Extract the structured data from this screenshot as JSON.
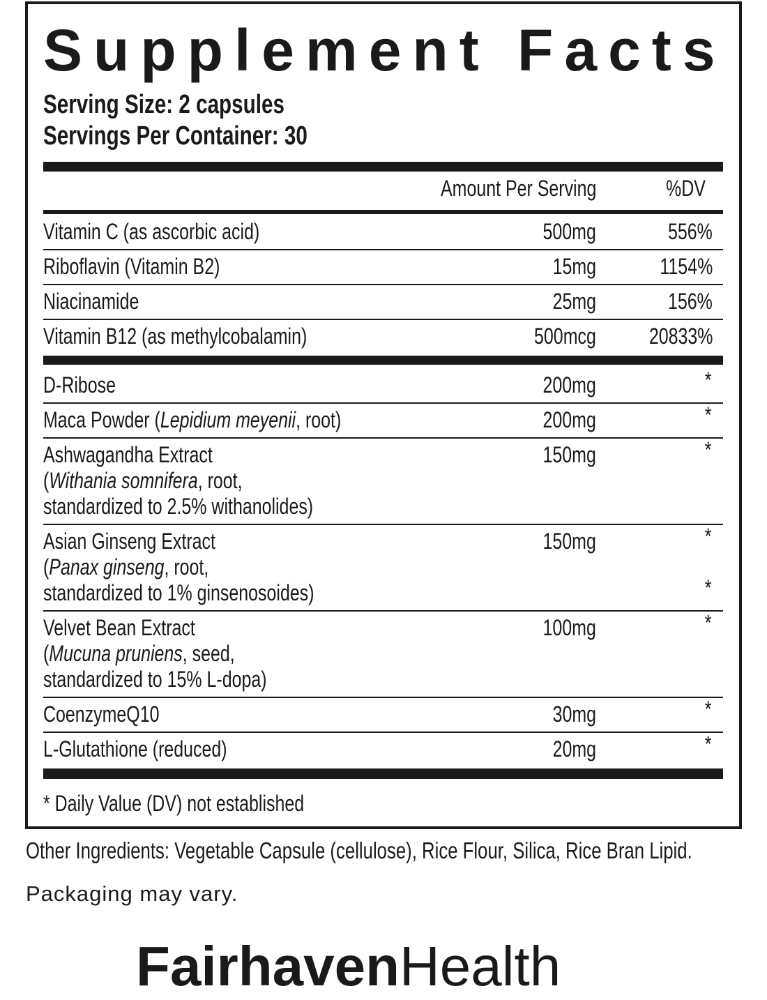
{
  "header": {
    "title": "Supplement Facts",
    "serving_size": "Serving Size: 2 capsules",
    "servings_per_container": "Servings Per Container: 30"
  },
  "table": {
    "columns": {
      "amount": "Amount Per Serving",
      "dv": "%DV"
    },
    "sections": [
      {
        "rows": [
          {
            "name": [
              [
                {
                  "text": "Vitamin C (as ascorbic acid)"
                }
              ]
            ],
            "amount": "500mg",
            "dv": "556%"
          },
          {
            "name": [
              [
                {
                  "text": "Riboflavin (Vitamin B2)"
                }
              ]
            ],
            "amount": "15mg",
            "dv": "1154%"
          },
          {
            "name": [
              [
                {
                  "text": "Niacinamide"
                }
              ]
            ],
            "amount": "25mg",
            "dv": "156%"
          },
          {
            "name": [
              [
                {
                  "text": "Vitamin B12 (as methylcobalamin)"
                }
              ]
            ],
            "amount": "500mcg",
            "dv": "20833%"
          }
        ]
      },
      {
        "rows": [
          {
            "name": [
              [
                {
                  "text": "D-Ribose"
                }
              ]
            ],
            "amount": "200mg",
            "dv": "*"
          },
          {
            "name": [
              [
                {
                  "text": "Maca Powder ("
                },
                {
                  "text": "Lepidium meyenii",
                  "italic": true
                },
                {
                  "text": ", root)"
                }
              ]
            ],
            "amount": "200mg",
            "dv": "*"
          },
          {
            "name": [
              [
                {
                  "text": "Ashwagandha Extract"
                }
              ],
              [
                {
                  "text": "("
                },
                {
                  "text": "Withania somnifera",
                  "italic": true
                },
                {
                  "text": ", root,"
                }
              ],
              [
                {
                  "text": "standardized to 2.5% withanolides)"
                }
              ]
            ],
            "amount": "150mg",
            "dv": "*"
          },
          {
            "name": [
              [
                {
                  "text": "Asian Ginseng Extract"
                }
              ],
              [
                {
                  "text": "("
                },
                {
                  "text": "Panax ginseng",
                  "italic": true
                },
                {
                  "text": ", root,"
                }
              ],
              [
                {
                  "text": "standardized to 1% ginsenosoides)"
                }
              ]
            ],
            "amount": "150mg",
            "dv": [
              "*",
              null,
              "*"
            ]
          },
          {
            "name": [
              [
                {
                  "text": "Velvet Bean Extract"
                }
              ],
              [
                {
                  "text": "("
                },
                {
                  "text": "Mucuna pruniens",
                  "italic": true
                },
                {
                  "text": ", seed,"
                }
              ],
              [
                {
                  "text": "standardized to 15% L-dopa)"
                }
              ]
            ],
            "amount": "100mg",
            "dv": "*"
          },
          {
            "name": [
              [
                {
                  "text": "CoenzymeQ10"
                }
              ]
            ],
            "amount": "30mg",
            "dv": "*"
          },
          {
            "name": [
              [
                {
                  "text": "L-Glutathione (reduced)"
                }
              ]
            ],
            "amount": "20mg",
            "dv": "*"
          }
        ]
      }
    ]
  },
  "footnote": "* Daily Value (DV) not established",
  "other_ingredients": "Other Ingredients: Vegetable Capsule (cellulose), Rice Flour, Silica, Rice Bran Lipid.",
  "packaging_note": "Packaging may vary.",
  "brand": {
    "bold": "Fairhaven",
    "regular": "Health"
  }
}
